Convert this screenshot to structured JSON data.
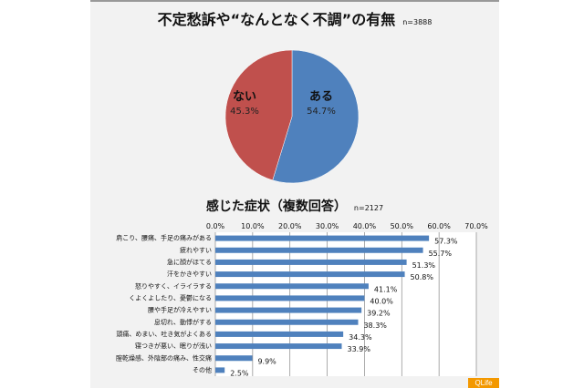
{
  "chart_data": [
    {
      "type": "pie",
      "title": "不定愁訴や“なんとなく不調”の有無",
      "note": "n=3888",
      "slices": [
        {
          "label": "ある",
          "value": 54.7,
          "color": "#4f81bd"
        },
        {
          "label": "ない",
          "value": 45.3,
          "color": "#c0504d"
        }
      ]
    },
    {
      "type": "bar",
      "orientation": "horizontal",
      "title": "感じた症状（複数回答）",
      "note": "n=2127",
      "xlim": [
        0,
        70
      ],
      "xticks": [
        "0.0%",
        "10.0%",
        "20.0%",
        "30.0%",
        "40.0%",
        "50.0%",
        "60.0%",
        "70.0%"
      ],
      "grid": true,
      "color": "#4f81bd",
      "categories": [
        "肩こり、腰痛、手足の痛みがある",
        "疲れやすい",
        "急に顔がほてる",
        "汗をかきやすい",
        "怒りやすく、イライラする",
        "くよくよしたり、憂鬱になる",
        "腰や手足が冷えやすい",
        "息切れ、動悸がする",
        "頭痛、めまい、吐き気がよくある",
        "寝つきが悪い、眠りが浅い",
        "膣乾燥感、外陰部の痛み、性交痛",
        "その他"
      ],
      "values": [
        57.3,
        55.7,
        51.3,
        50.8,
        41.1,
        40.0,
        39.2,
        38.3,
        34.3,
        33.9,
        9.9,
        2.5
      ],
      "data_labels": [
        "57.3%",
        "55.7%",
        "51.3%",
        "50.8%",
        "41.1%",
        "40.0%",
        "39.2%",
        "38.3%",
        "34.3%",
        "33.9%",
        "9.9%",
        "2.5%"
      ]
    }
  ],
  "logo": "QLife"
}
